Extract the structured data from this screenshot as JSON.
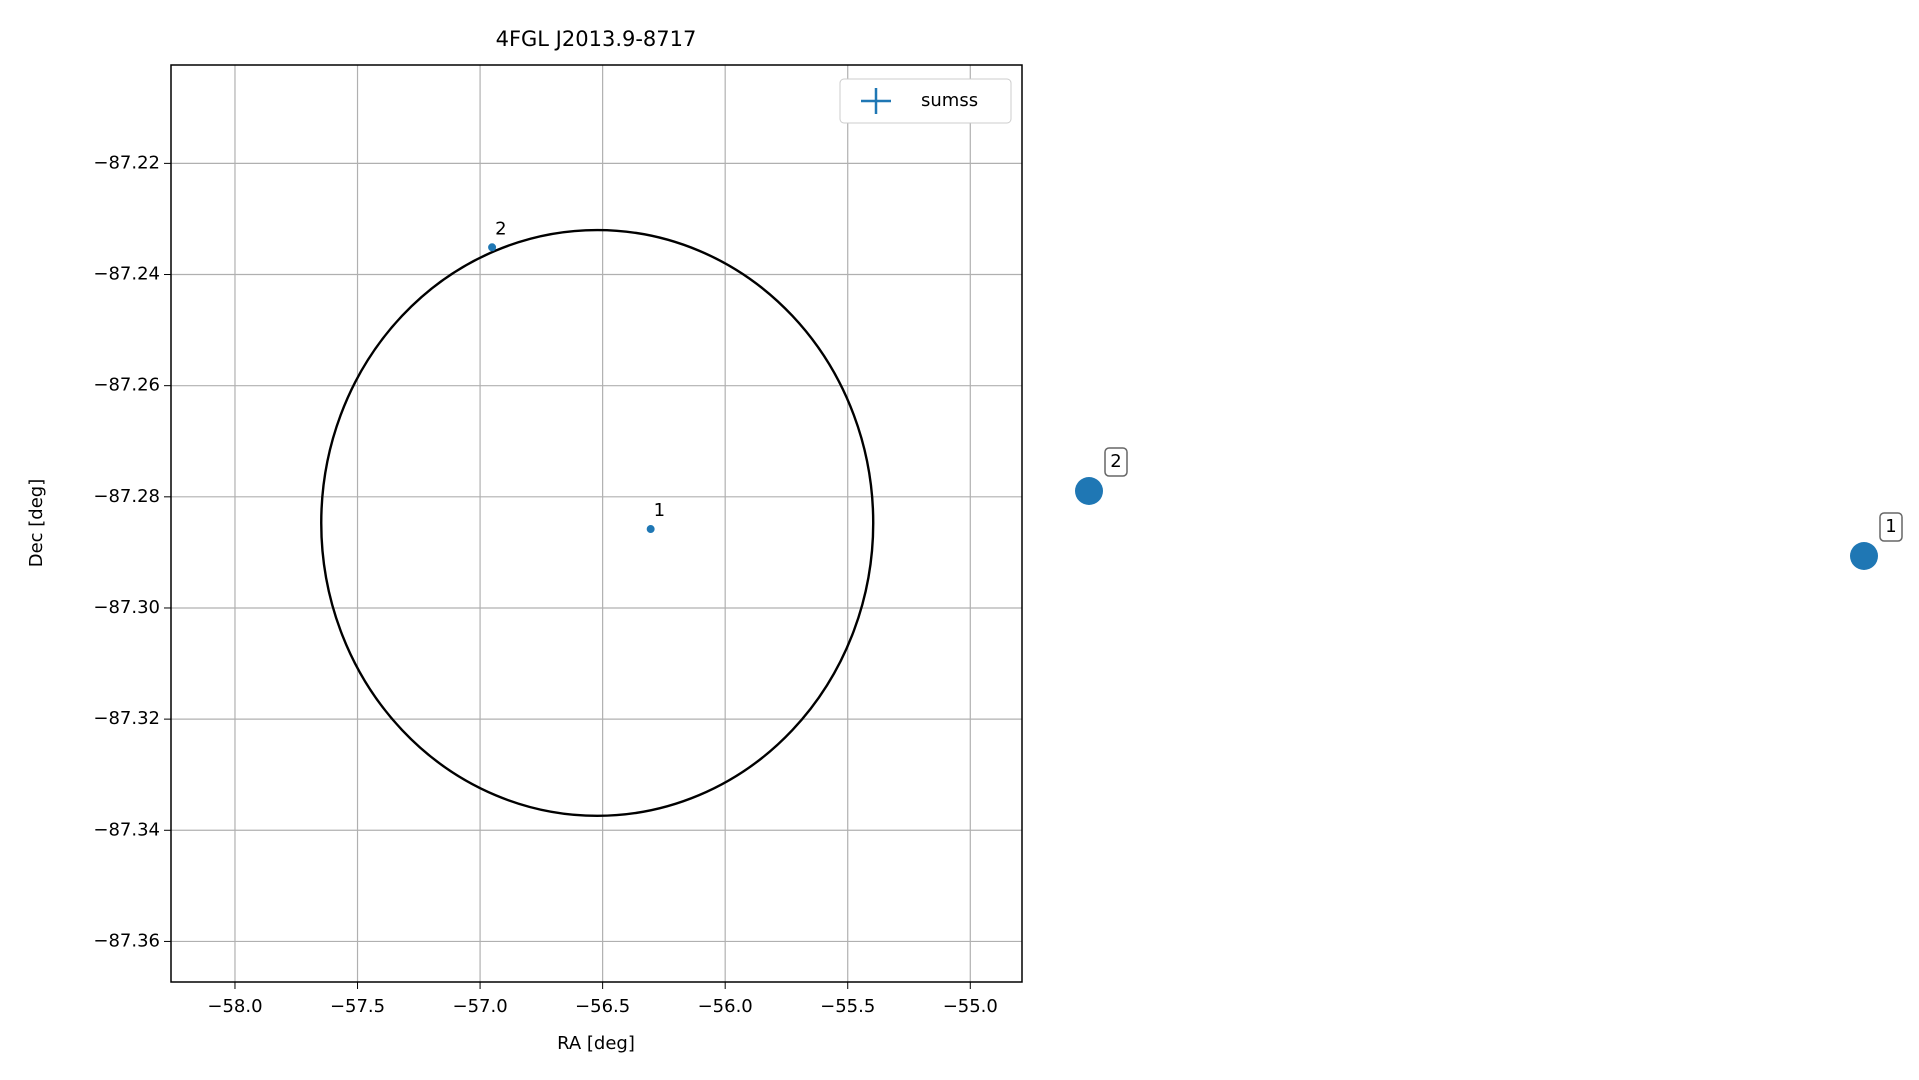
{
  "chart_data": {
    "type": "scatter",
    "title": "4FGL J2013.9-8717",
    "x_label": "RA [deg]",
    "y_label": "Dec [deg]",
    "xlim": [
      -58.261,
      -54.789
    ],
    "ylim": [
      -87.3673,
      -87.2023
    ],
    "xticks": [
      {
        "value": -58.0,
        "label": "−58.0"
      },
      {
        "value": -57.5,
        "label": "−57.5"
      },
      {
        "value": -57.0,
        "label": "−57.0"
      },
      {
        "value": -56.5,
        "label": "−56.5"
      },
      {
        "value": -56.0,
        "label": "−56.0"
      },
      {
        "value": -55.5,
        "label": "−55.5"
      },
      {
        "value": -55.0,
        "label": "−55.0"
      }
    ],
    "yticks": [
      {
        "value": -87.36,
        "label": "−87.36"
      },
      {
        "value": -87.34,
        "label": "−87.34"
      },
      {
        "value": -87.32,
        "label": "−87.32"
      },
      {
        "value": -87.3,
        "label": "−87.30"
      },
      {
        "value": -87.28,
        "label": "−87.28"
      },
      {
        "value": -87.26,
        "label": "−87.26"
      },
      {
        "value": -87.24,
        "label": "−87.24"
      },
      {
        "value": -87.22,
        "label": "−87.22"
      }
    ],
    "grid": true,
    "legend": "upper right",
    "series": [
      {
        "name": "sumss",
        "color": "#1f77b4",
        "x": [
          -56.304,
          -56.951
        ],
        "values": [
          -87.2858,
          -87.2351
        ],
        "labels": [
          "1",
          "2"
        ]
      }
    ],
    "ellipse": {
      "center": [
        -56.522,
        -87.2847
      ],
      "rx": 1.126,
      "ry": 0.0527,
      "color": "#000000"
    }
  }
}
